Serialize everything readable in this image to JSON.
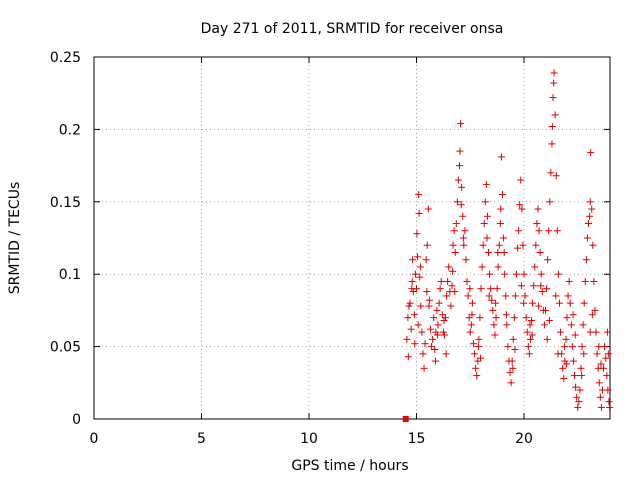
{
  "chart_data": {
    "type": "scatter",
    "title": "Day 271 of 2011, SRMTID for receiver onsa",
    "xlabel": "GPS time / hours",
    "ylabel": "SRMTID / TECUs",
    "xlim": [
      0,
      24
    ],
    "ylim": [
      0,
      0.25
    ],
    "xticks": [
      0,
      5,
      10,
      15,
      20
    ],
    "xtick_labels": [
      "0",
      "5",
      "10",
      "15",
      "20"
    ],
    "yticks": [
      0,
      0.05,
      0.1,
      0.15,
      0.2,
      0.25
    ],
    "ytick_labels": [
      "0",
      "0.05",
      "0.1",
      "0.15",
      "0.2",
      "0.25"
    ],
    "grid": true,
    "marker": "+",
    "series_color": "#e00000",
    "marker_square": {
      "x": 14.5,
      "y": 0
    },
    "series": [
      {
        "name": "SRMTID",
        "points": [
          [
            14.55,
            0.055
          ],
          [
            14.6,
            0.07
          ],
          [
            14.62,
            0.043
          ],
          [
            14.7,
            0.08
          ],
          [
            14.75,
            0.062
          ],
          [
            14.8,
            0.095
          ],
          [
            14.82,
            0.11
          ],
          [
            14.85,
            0.088
          ],
          [
            14.9,
            0.072
          ],
          [
            14.92,
            0.052
          ],
          [
            14.95,
            0.1
          ],
          [
            15.0,
            0.09
          ],
          [
            15.02,
            0.128
          ],
          [
            15.05,
            0.112
          ],
          [
            15.1,
            0.155
          ],
          [
            15.12,
            0.142
          ],
          [
            15.15,
            0.098
          ],
          [
            15.2,
            0.078
          ],
          [
            15.25,
            0.06
          ],
          [
            15.3,
            0.045
          ],
          [
            15.35,
            0.035
          ],
          [
            15.4,
            0.052
          ],
          [
            15.45,
            0.11
          ],
          [
            15.5,
            0.12
          ],
          [
            15.55,
            0.145
          ],
          [
            15.6,
            0.082
          ],
          [
            15.65,
            0.062
          ],
          [
            15.7,
            0.05
          ],
          [
            15.75,
            0.055
          ],
          [
            15.8,
            0.07
          ],
          [
            15.85,
            0.048
          ],
          [
            15.9,
            0.06
          ],
          [
            15.95,
            0.075
          ],
          [
            16.0,
            0.065
          ],
          [
            16.05,
            0.08
          ],
          [
            16.1,
            0.09
          ],
          [
            16.15,
            0.095
          ],
          [
            16.2,
            0.072
          ],
          [
            16.25,
            0.06
          ],
          [
            16.3,
            0.058
          ],
          [
            16.35,
            0.07
          ],
          [
            16.4,
            0.085
          ],
          [
            16.45,
            0.095
          ],
          [
            16.5,
            0.105
          ],
          [
            16.55,
            0.088
          ],
          [
            16.6,
            0.078
          ],
          [
            16.65,
            0.092
          ],
          [
            16.7,
            0.12
          ],
          [
            16.75,
            0.13
          ],
          [
            16.8,
            0.115
          ],
          [
            16.85,
            0.135
          ],
          [
            16.9,
            0.15
          ],
          [
            16.95,
            0.165
          ],
          [
            17.0,
            0.175
          ],
          [
            17.02,
            0.185
          ],
          [
            17.05,
            0.204
          ],
          [
            17.1,
            0.16
          ],
          [
            17.15,
            0.14
          ],
          [
            17.2,
            0.12
          ],
          [
            17.25,
            0.13
          ],
          [
            17.3,
            0.11
          ],
          [
            17.35,
            0.095
          ],
          [
            17.4,
            0.085
          ],
          [
            17.45,
            0.07
          ],
          [
            17.5,
            0.06
          ],
          [
            17.55,
            0.065
          ],
          [
            17.6,
            0.08
          ],
          [
            17.65,
            0.052
          ],
          [
            17.7,
            0.045
          ],
          [
            17.75,
            0.035
          ],
          [
            17.8,
            0.03
          ],
          [
            17.85,
            0.04
          ],
          [
            17.9,
            0.055
          ],
          [
            17.95,
            0.07
          ],
          [
            18.0,
            0.09
          ],
          [
            18.05,
            0.105
          ],
          [
            18.1,
            0.12
          ],
          [
            18.15,
            0.135
          ],
          [
            18.2,
            0.15
          ],
          [
            18.25,
            0.162
          ],
          [
            18.3,
            0.14
          ],
          [
            18.35,
            0.115
          ],
          [
            18.4,
            0.1
          ],
          [
            18.45,
            0.09
          ],
          [
            18.5,
            0.082
          ],
          [
            18.55,
            0.075
          ],
          [
            18.6,
            0.065
          ],
          [
            18.65,
            0.058
          ],
          [
            18.7,
            0.07
          ],
          [
            18.75,
            0.09
          ],
          [
            18.8,
            0.105
          ],
          [
            18.85,
            0.12
          ],
          [
            18.9,
            0.135
          ],
          [
            18.92,
            0.145
          ],
          [
            18.95,
            0.181
          ],
          [
            19.0,
            0.155
          ],
          [
            19.05,
            0.125
          ],
          [
            19.1,
            0.1
          ],
          [
            19.15,
            0.085
          ],
          [
            19.2,
            0.065
          ],
          [
            19.25,
            0.05
          ],
          [
            19.3,
            0.04
          ],
          [
            19.35,
            0.032
          ],
          [
            19.4,
            0.025
          ],
          [
            19.45,
            0.04
          ],
          [
            19.5,
            0.055
          ],
          [
            19.55,
            0.07
          ],
          [
            19.6,
            0.085
          ],
          [
            19.65,
            0.1
          ],
          [
            19.7,
            0.118
          ],
          [
            19.75,
            0.13
          ],
          [
            19.8,
            0.148
          ],
          [
            19.85,
            0.165
          ],
          [
            19.9,
            0.145
          ],
          [
            19.95,
            0.12
          ],
          [
            20.0,
            0.1
          ],
          [
            20.05,
            0.085
          ],
          [
            20.1,
            0.07
          ],
          [
            20.15,
            0.06
          ],
          [
            20.2,
            0.05
          ],
          [
            20.25,
            0.045
          ],
          [
            20.3,
            0.055
          ],
          [
            20.35,
            0.068
          ],
          [
            20.4,
            0.08
          ],
          [
            20.45,
            0.092
          ],
          [
            20.5,
            0.105
          ],
          [
            20.55,
            0.12
          ],
          [
            20.6,
            0.135
          ],
          [
            20.65,
            0.145
          ],
          [
            20.7,
            0.13
          ],
          [
            20.75,
            0.115
          ],
          [
            20.8,
            0.1
          ],
          [
            20.85,
            0.088
          ],
          [
            20.9,
            0.075
          ],
          [
            20.95,
            0.065
          ],
          [
            21.0,
            0.075
          ],
          [
            21.05,
            0.09
          ],
          [
            21.1,
            0.11
          ],
          [
            21.15,
            0.13
          ],
          [
            21.2,
            0.15
          ],
          [
            21.25,
            0.17
          ],
          [
            21.3,
            0.19
          ],
          [
            21.32,
            0.202
          ],
          [
            21.35,
            0.222
          ],
          [
            21.38,
            0.232
          ],
          [
            21.4,
            0.239
          ],
          [
            21.45,
            0.21
          ],
          [
            21.5,
            0.168
          ],
          [
            21.55,
            0.13
          ],
          [
            21.6,
            0.1
          ],
          [
            21.65,
            0.08
          ],
          [
            21.7,
            0.06
          ],
          [
            21.75,
            0.045
          ],
          [
            21.8,
            0.035
          ],
          [
            21.85,
            0.028
          ],
          [
            21.9,
            0.04
          ],
          [
            21.95,
            0.055
          ],
          [
            22.0,
            0.07
          ],
          [
            22.05,
            0.085
          ],
          [
            22.1,
            0.095
          ],
          [
            22.15,
            0.08
          ],
          [
            22.2,
            0.065
          ],
          [
            22.25,
            0.05
          ],
          [
            22.3,
            0.04
          ],
          [
            22.35,
            0.03
          ],
          [
            22.4,
            0.022
          ],
          [
            22.45,
            0.015
          ],
          [
            22.5,
            0.008
          ],
          [
            22.55,
            0.012
          ],
          [
            22.6,
            0.02
          ],
          [
            22.65,
            0.035
          ],
          [
            22.7,
            0.05
          ],
          [
            22.75,
            0.065
          ],
          [
            22.8,
            0.08
          ],
          [
            22.85,
            0.095
          ],
          [
            22.9,
            0.11
          ],
          [
            22.95,
            0.125
          ],
          [
            23.0,
            0.135
          ],
          [
            23.05,
            0.14
          ],
          [
            23.08,
            0.15
          ],
          [
            23.1,
            0.184
          ],
          [
            23.15,
            0.145
          ],
          [
            23.2,
            0.12
          ],
          [
            23.25,
            0.095
          ],
          [
            23.3,
            0.075
          ],
          [
            23.35,
            0.06
          ],
          [
            23.4,
            0.045
          ],
          [
            23.45,
            0.035
          ],
          [
            23.5,
            0.025
          ],
          [
            23.55,
            0.015
          ],
          [
            23.6,
            0.008
          ],
          [
            23.65,
            0.02
          ],
          [
            23.7,
            0.035
          ],
          [
            23.75,
            0.05
          ],
          [
            23.8,
            0.042
          ],
          [
            23.85,
            0.03
          ],
          [
            23.9,
            0.02
          ],
          [
            23.95,
            0.012
          ],
          [
            23.98,
            0.008
          ],
          [
            14.65,
            0.078
          ],
          [
            15.08,
            0.065
          ],
          [
            15.48,
            0.088
          ],
          [
            15.88,
            0.04
          ],
          [
            16.28,
            0.068
          ],
          [
            16.68,
            0.102
          ],
          [
            17.08,
            0.148
          ],
          [
            17.48,
            0.09
          ],
          [
            17.88,
            0.05
          ],
          [
            18.28,
            0.125
          ],
          [
            18.68,
            0.08
          ],
          [
            19.08,
            0.115
          ],
          [
            19.48,
            0.035
          ],
          [
            19.88,
            0.092
          ],
          [
            20.28,
            0.065
          ],
          [
            20.68,
            0.078
          ],
          [
            21.08,
            0.055
          ],
          [
            21.48,
            0.085
          ],
          [
            21.88,
            0.05
          ],
          [
            22.28,
            0.072
          ],
          [
            22.68,
            0.03
          ],
          [
            23.08,
            0.06
          ],
          [
            23.48,
            0.05
          ],
          [
            23.88,
            0.06
          ],
          [
            14.78,
            0.09
          ],
          [
            15.18,
            0.105
          ],
          [
            15.58,
            0.078
          ],
          [
            15.98,
            0.058
          ],
          [
            16.38,
            0.045
          ],
          [
            16.78,
            0.088
          ],
          [
            17.18,
            0.125
          ],
          [
            17.58,
            0.072
          ],
          [
            17.98,
            0.042
          ],
          [
            18.38,
            0.085
          ],
          [
            18.78,
            0.115
          ],
          [
            19.18,
            0.072
          ],
          [
            19.58,
            0.048
          ],
          [
            19.98,
            0.08
          ],
          [
            20.38,
            0.058
          ],
          [
            20.78,
            0.092
          ],
          [
            21.18,
            0.068
          ],
          [
            21.58,
            0.045
          ],
          [
            21.98,
            0.038
          ],
          [
            22.38,
            0.058
          ],
          [
            22.78,
            0.045
          ],
          [
            23.18,
            0.072
          ],
          [
            23.58,
            0.038
          ],
          [
            23.92,
            0.045
          ]
        ]
      }
    ]
  }
}
